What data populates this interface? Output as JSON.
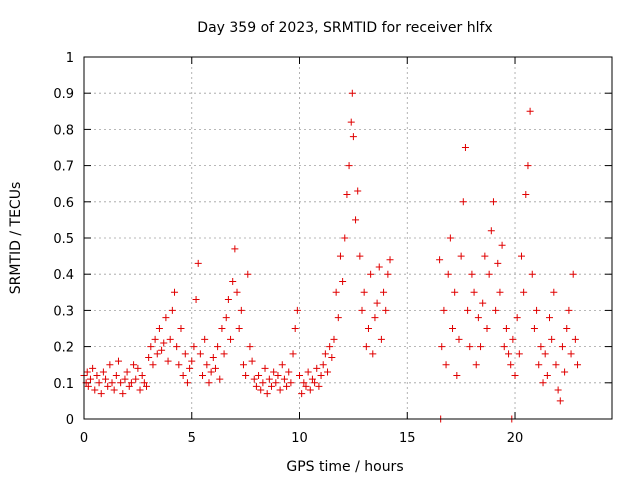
{
  "chart_data": {
    "type": "scatter",
    "title": "Day 359 of 2023, SRMTID for receiver hlfx",
    "xlabel": "GPS time / hours",
    "ylabel": "SRMTID / TECUs",
    "xlim": [
      0,
      24.5
    ],
    "ylim": [
      0,
      1
    ],
    "xticks": [
      0,
      5,
      10,
      15,
      20
    ],
    "xtick_labels": [
      "0",
      "5",
      "10",
      "15",
      "20"
    ],
    "yticks": [
      0,
      0.1,
      0.2,
      0.3,
      0.4,
      0.5,
      0.6,
      0.7,
      0.8,
      0.9,
      1
    ],
    "ytick_labels": [
      "0",
      "0.1",
      "0.2",
      "0.3",
      "0.4",
      "0.5",
      "0.6",
      "0.7",
      "0.8",
      "0.9",
      "1"
    ],
    "grid": true,
    "marker": "plus",
    "color": "#e00000",
    "series": [
      {
        "name": "SRMTID",
        "points": [
          [
            0.0,
            0.12
          ],
          [
            0.1,
            0.1
          ],
          [
            0.15,
            0.13
          ],
          [
            0.2,
            0.09
          ],
          [
            0.3,
            0.11
          ],
          [
            0.4,
            0.14
          ],
          [
            0.5,
            0.08
          ],
          [
            0.6,
            0.12
          ],
          [
            0.7,
            0.1
          ],
          [
            0.8,
            0.07
          ],
          [
            0.9,
            0.13
          ],
          [
            1.0,
            0.11
          ],
          [
            1.1,
            0.09
          ],
          [
            1.2,
            0.15
          ],
          [
            1.3,
            0.1
          ],
          [
            1.4,
            0.08
          ],
          [
            1.5,
            0.12
          ],
          [
            1.6,
            0.16
          ],
          [
            1.7,
            0.1
          ],
          [
            1.8,
            0.07
          ],
          [
            1.9,
            0.11
          ],
          [
            2.0,
            0.13
          ],
          [
            2.1,
            0.09
          ],
          [
            2.2,
            0.1
          ],
          [
            2.3,
            0.15
          ],
          [
            2.4,
            0.11
          ],
          [
            2.5,
            0.14
          ],
          [
            2.6,
            0.08
          ],
          [
            2.7,
            0.12
          ],
          [
            2.8,
            0.1
          ],
          [
            2.9,
            0.09
          ],
          [
            3.0,
            0.17
          ],
          [
            3.1,
            0.2
          ],
          [
            3.2,
            0.15
          ],
          [
            3.3,
            0.22
          ],
          [
            3.4,
            0.18
          ],
          [
            3.5,
            0.25
          ],
          [
            3.6,
            0.19
          ],
          [
            3.7,
            0.21
          ],
          [
            3.8,
            0.28
          ],
          [
            3.9,
            0.16
          ],
          [
            4.0,
            0.22
          ],
          [
            4.1,
            0.3
          ],
          [
            4.2,
            0.35
          ],
          [
            4.3,
            0.2
          ],
          [
            4.4,
            0.15
          ],
          [
            4.5,
            0.25
          ],
          [
            4.6,
            0.12
          ],
          [
            4.7,
            0.18
          ],
          [
            4.8,
            0.1
          ],
          [
            4.9,
            0.14
          ],
          [
            5.0,
            0.16
          ],
          [
            5.1,
            0.2
          ],
          [
            5.2,
            0.33
          ],
          [
            5.3,
            0.43
          ],
          [
            5.4,
            0.18
          ],
          [
            5.5,
            0.12
          ],
          [
            5.6,
            0.22
          ],
          [
            5.7,
            0.15
          ],
          [
            5.8,
            0.1
          ],
          [
            5.9,
            0.13
          ],
          [
            6.0,
            0.17
          ],
          [
            6.1,
            0.14
          ],
          [
            6.2,
            0.2
          ],
          [
            6.3,
            0.11
          ],
          [
            6.4,
            0.25
          ],
          [
            6.5,
            0.18
          ],
          [
            6.6,
            0.28
          ],
          [
            6.7,
            0.33
          ],
          [
            6.8,
            0.22
          ],
          [
            6.9,
            0.38
          ],
          [
            7.0,
            0.47
          ],
          [
            7.1,
            0.35
          ],
          [
            7.2,
            0.25
          ],
          [
            7.3,
            0.3
          ],
          [
            7.4,
            0.15
          ],
          [
            7.5,
            0.12
          ],
          [
            7.6,
            0.4
          ],
          [
            7.7,
            0.2
          ],
          [
            7.8,
            0.16
          ],
          [
            7.9,
            0.11
          ],
          [
            8.0,
            0.09
          ],
          [
            8.1,
            0.12
          ],
          [
            8.2,
            0.08
          ],
          [
            8.3,
            0.1
          ],
          [
            8.4,
            0.14
          ],
          [
            8.5,
            0.07
          ],
          [
            8.6,
            0.11
          ],
          [
            8.7,
            0.09
          ],
          [
            8.8,
            0.13
          ],
          [
            8.9,
            0.1
          ],
          [
            9.0,
            0.12
          ],
          [
            9.1,
            0.08
          ],
          [
            9.2,
            0.15
          ],
          [
            9.3,
            0.11
          ],
          [
            9.4,
            0.09
          ],
          [
            9.5,
            0.13
          ],
          [
            9.6,
            0.1
          ],
          [
            9.7,
            0.18
          ],
          [
            9.8,
            0.25
          ],
          [
            9.9,
            0.3
          ],
          [
            10.0,
            0.12
          ],
          [
            10.1,
            0.07
          ],
          [
            10.2,
            0.1
          ],
          [
            10.3,
            0.09
          ],
          [
            10.4,
            0.13
          ],
          [
            10.5,
            0.08
          ],
          [
            10.6,
            0.11
          ],
          [
            10.7,
            0.1
          ],
          [
            10.8,
            0.14
          ],
          [
            10.9,
            0.09
          ],
          [
            11.0,
            0.12
          ],
          [
            11.1,
            0.15
          ],
          [
            11.2,
            0.18
          ],
          [
            11.3,
            0.13
          ],
          [
            11.4,
            0.2
          ],
          [
            11.5,
            0.17
          ],
          [
            11.6,
            0.22
          ],
          [
            11.7,
            0.35
          ],
          [
            11.8,
            0.28
          ],
          [
            11.9,
            0.45
          ],
          [
            12.0,
            0.38
          ],
          [
            12.1,
            0.5
          ],
          [
            12.2,
            0.62
          ],
          [
            12.3,
            0.7
          ],
          [
            12.4,
            0.82
          ],
          [
            12.45,
            0.9
          ],
          [
            12.5,
            0.78
          ],
          [
            12.6,
            0.55
          ],
          [
            12.7,
            0.63
          ],
          [
            12.8,
            0.45
          ],
          [
            12.9,
            0.3
          ],
          [
            13.0,
            0.35
          ],
          [
            13.1,
            0.2
          ],
          [
            13.2,
            0.25
          ],
          [
            13.3,
            0.4
          ],
          [
            13.4,
            0.18
          ],
          [
            13.5,
            0.28
          ],
          [
            13.6,
            0.32
          ],
          [
            13.7,
            0.42
          ],
          [
            13.8,
            0.22
          ],
          [
            13.9,
            0.35
          ],
          [
            14.0,
            0.3
          ],
          [
            14.1,
            0.4
          ],
          [
            14.2,
            0.44
          ],
          [
            16.5,
            0.44
          ],
          [
            16.6,
            0.2
          ],
          [
            16.7,
            0.3
          ],
          [
            16.8,
            0.15
          ],
          [
            16.9,
            0.4
          ],
          [
            17.0,
            0.5
          ],
          [
            17.1,
            0.25
          ],
          [
            17.2,
            0.35
          ],
          [
            17.3,
            0.12
          ],
          [
            17.4,
            0.22
          ],
          [
            17.5,
            0.45
          ],
          [
            17.6,
            0.6
          ],
          [
            17.7,
            0.75
          ],
          [
            17.8,
            0.3
          ],
          [
            17.9,
            0.2
          ],
          [
            18.0,
            0.4
          ],
          [
            18.1,
            0.35
          ],
          [
            18.2,
            0.15
          ],
          [
            18.3,
            0.28
          ],
          [
            18.4,
            0.2
          ],
          [
            18.5,
            0.32
          ],
          [
            18.6,
            0.45
          ],
          [
            18.7,
            0.25
          ],
          [
            18.8,
            0.4
          ],
          [
            18.9,
            0.52
          ],
          [
            19.0,
            0.6
          ],
          [
            19.1,
            0.3
          ],
          [
            19.2,
            0.43
          ],
          [
            19.3,
            0.35
          ],
          [
            19.4,
            0.48
          ],
          [
            19.5,
            0.2
          ],
          [
            19.6,
            0.25
          ],
          [
            19.7,
            0.18
          ],
          [
            19.8,
            0.15
          ],
          [
            19.9,
            0.22
          ],
          [
            20.0,
            0.12
          ],
          [
            20.1,
            0.28
          ],
          [
            20.2,
            0.18
          ],
          [
            20.3,
            0.45
          ],
          [
            20.4,
            0.35
          ],
          [
            20.5,
            0.62
          ],
          [
            20.6,
            0.7
          ],
          [
            20.7,
            0.85
          ],
          [
            20.8,
            0.4
          ],
          [
            20.9,
            0.25
          ],
          [
            21.0,
            0.3
          ],
          [
            21.1,
            0.15
          ],
          [
            21.2,
            0.2
          ],
          [
            21.3,
            0.1
          ],
          [
            21.4,
            0.18
          ],
          [
            21.5,
            0.12
          ],
          [
            21.6,
            0.28
          ],
          [
            21.7,
            0.22
          ],
          [
            21.8,
            0.35
          ],
          [
            21.9,
            0.15
          ],
          [
            22.0,
            0.08
          ],
          [
            22.1,
            0.05
          ],
          [
            22.2,
            0.2
          ],
          [
            22.3,
            0.13
          ],
          [
            22.4,
            0.25
          ],
          [
            22.5,
            0.3
          ],
          [
            22.6,
            0.18
          ],
          [
            22.7,
            0.4
          ],
          [
            22.8,
            0.22
          ],
          [
            22.9,
            0.15
          ],
          [
            16.55,
            0.0
          ],
          [
            19.85,
            0.0
          ]
        ]
      }
    ]
  }
}
